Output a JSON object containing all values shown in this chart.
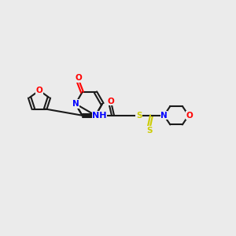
{
  "bg_color": "#ebebeb",
  "bond_color": "#1a1a1a",
  "bond_width": 1.5,
  "atom_colors": {
    "N": "#0000ff",
    "O": "#ff0000",
    "S": "#cccc00",
    "C": "#1a1a1a",
    "H": "#1a1a1a"
  },
  "font_size": 7.5
}
